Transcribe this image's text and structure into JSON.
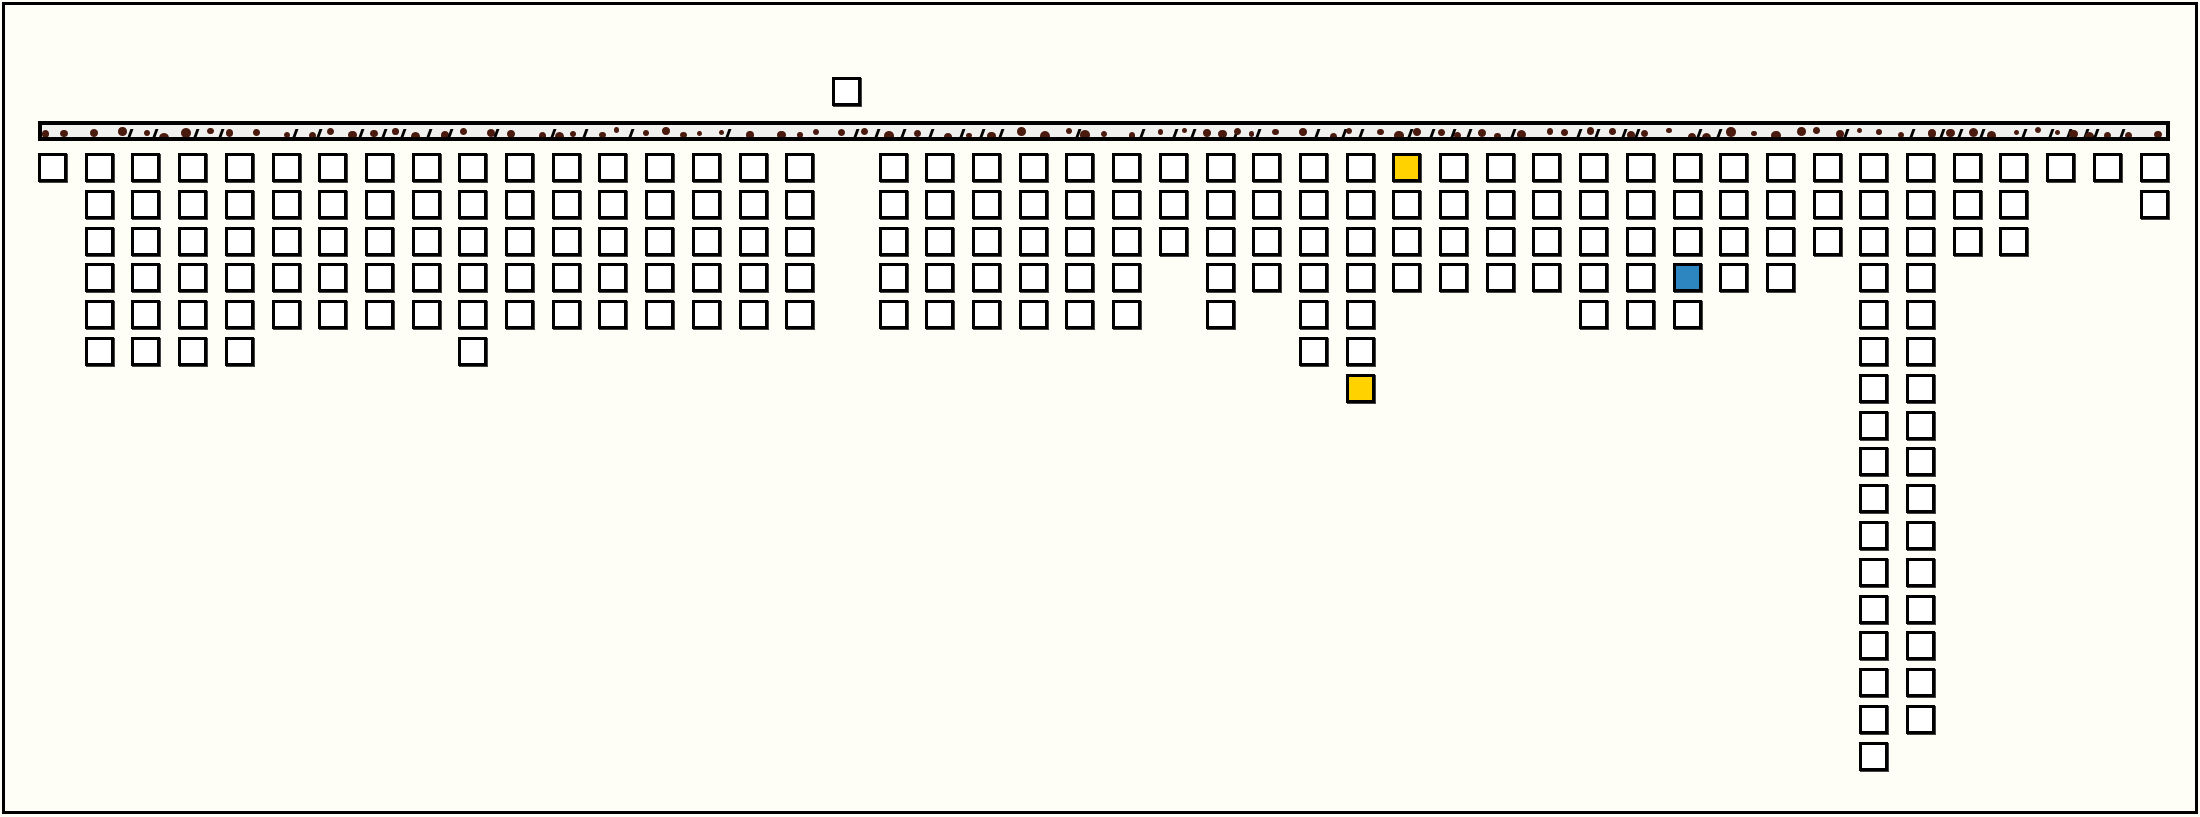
{
  "colors": {
    "background": "#fefef6",
    "cell": "#ffffff",
    "border": "#000000",
    "highlight_yellow": "#ffd200",
    "highlight_blue": "#2e86c1",
    "bar_fill": "#f0f0ee",
    "bar_dots": "#4a1a0e"
  },
  "board": {
    "column_count": 46,
    "column_heights": [
      1,
      6,
      6,
      6,
      6,
      5,
      5,
      5,
      5,
      6,
      5,
      5,
      5,
      5,
      5,
      5,
      5,
      0,
      5,
      5,
      5,
      5,
      5,
      5,
      3,
      5,
      4,
      6,
      7,
      4,
      4,
      4,
      4,
      5,
      5,
      5,
      4,
      4,
      3,
      17,
      16,
      3,
      3,
      1,
      1,
      2
    ],
    "floating_piece_column": 17,
    "highlighted_cells": [
      {
        "column": 29,
        "row": 0,
        "color": "yellow"
      },
      {
        "column": 28,
        "row": 6,
        "color": "yellow"
      },
      {
        "column": 35,
        "row": 3,
        "color": "blue"
      }
    ]
  }
}
